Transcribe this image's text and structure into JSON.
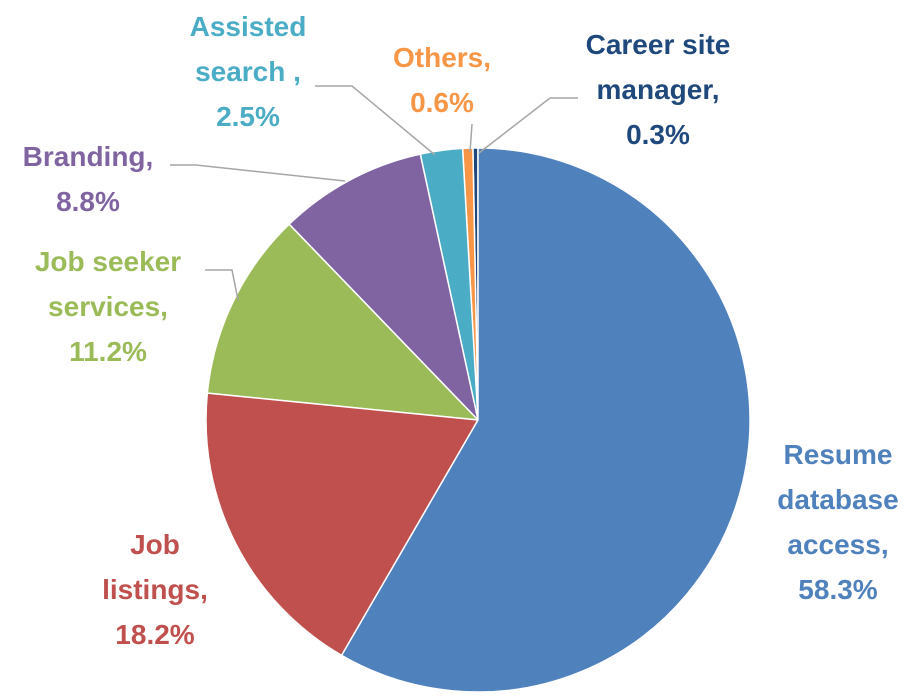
{
  "chart_data": {
    "type": "pie",
    "categories": [
      "Resume database access,",
      "Job listings,",
      "Job seeker services,",
      "Branding,",
      "Assisted search ,",
      "Others,",
      "Career site manager,"
    ],
    "values": [
      58.3,
      18.2,
      11.2,
      8.8,
      2.5,
      0.6,
      0.3
    ],
    "value_labels": [
      "58.3%",
      "18.2%",
      "11.2%",
      "8.8%",
      "2.5%",
      "0.6%",
      "0.3%"
    ],
    "colors": [
      "#4f81bd",
      "#c0504d",
      "#9bbb59",
      "#8064a2",
      "#4bacc6",
      "#f79646",
      "#1f497d"
    ]
  }
}
